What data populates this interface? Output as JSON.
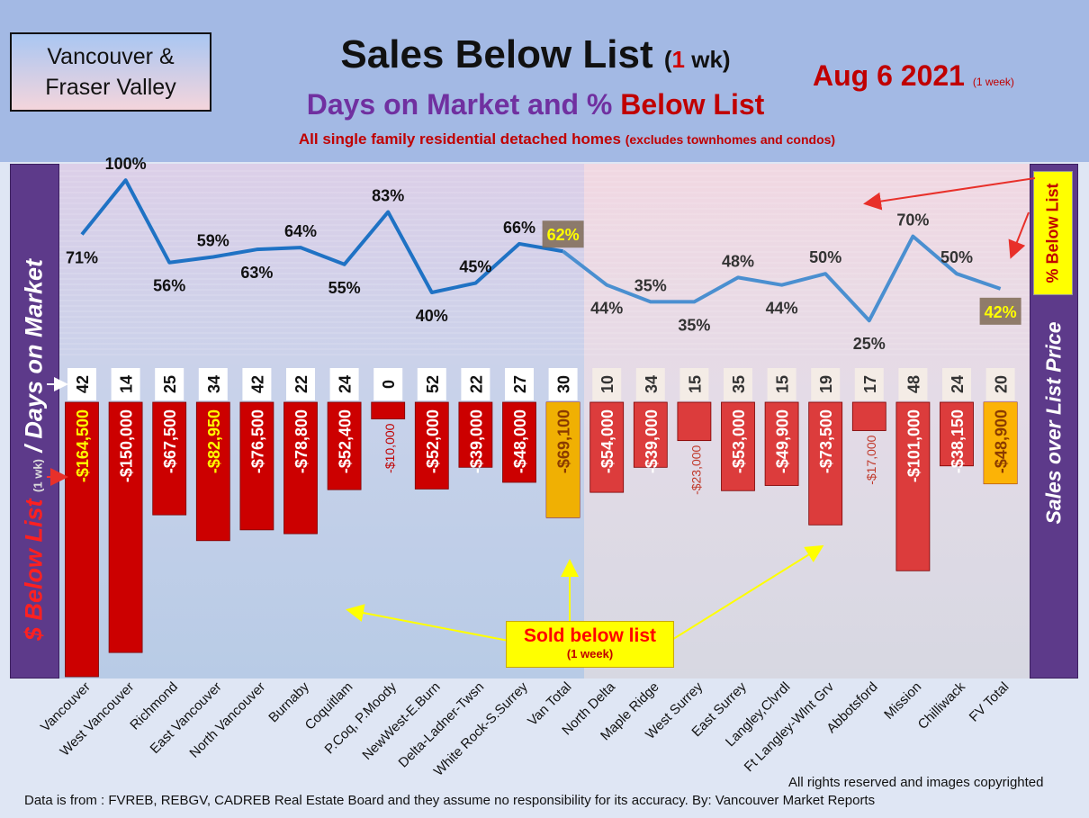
{
  "header": {
    "region_line1": "Vancouver &",
    "region_line2": "Fraser Valley",
    "title_main": "Sales Below List",
    "title_paren_open": "(",
    "title_num": "1",
    "title_unit": " wk)",
    "subtitle_part1": "Days on Market and % ",
    "subtitle_part2": "Below List",
    "note_main": "All single family residential detached homes",
    "note_small": "(excludes townhomes and condos)",
    "date": "Aug 6  2021",
    "date_small": "(1 week)"
  },
  "side": {
    "left_red": "$ Below List",
    "left_small": "(1 wk)",
    "left_rest": "/ Days on Market",
    "right": "Sales over List Price",
    "pct_label": "% Below List"
  },
  "annotation": {
    "sold_main": "Sold below list",
    "sold_sub": "(1 week)"
  },
  "footer": {
    "rights": "All rights reserved and  images copyrighted",
    "source": "Data is from : FVREB, REBGV, CADREB Real Estate Board and they assume no responsibility for its accuracy. By: Vancouver Market Reports"
  },
  "colors": {
    "bar_red": "#cc0000",
    "bar_light": "#dc3c3c",
    "total_bar": "#ffc000",
    "line": "#1f72c4",
    "highlight_label_bg": "#7f6a55",
    "highlight_label_text": "#ffff00"
  },
  "chart_data": {
    "type": "bar+line",
    "categories": [
      "Vancouver",
      "West Vancouver",
      "Richmond",
      "East Vancouver",
      "North Vancouver",
      "Burnaby",
      "Coquitlam",
      "P.Coq, P.Moody",
      "NewWest-E.Burn",
      "Delta-Ladner-Twsn",
      "White Rock-S.Surrey",
      "Van Total",
      "North Delta",
      "Maple Ridge",
      "West Surrey",
      "East Surrey",
      "Langley,Clvrdl",
      "Ft Langley-Wlnt Grv",
      "Abbotsford",
      "Mission",
      "Chilliwack",
      "FV Total"
    ],
    "series": [
      {
        "values": [
          -164500,
          -150000,
          -67500,
          -82950,
          -76500,
          -78800,
          -52400,
          -10000,
          -52000,
          -39000,
          -48000,
          -69100,
          -54000,
          -39000,
          -23000,
          -53000,
          -49900,
          -73500,
          -17000,
          -101000,
          -38150,
          -48900
        ],
        "labels": [
          "-$164,500",
          "-$150,000",
          "-$67,500",
          "-$82,950",
          "-$76,500",
          "-$78,800",
          "-$52,400",
          "-$10,000",
          "-$52,000",
          "-$39,000",
          "-$48,000",
          "-$69,100",
          "-$54,000",
          "-$39,000",
          "-$23,000",
          "-$53,000",
          "-$49,900",
          "-$73,500",
          "-$17,000",
          "-$101,000",
          "-$38,150",
          "-$48,900"
        ]
      },
      {
        "values": [
          42,
          14,
          25,
          34,
          42,
          22,
          24,
          0,
          52,
          22,
          27,
          30,
          10,
          34,
          15,
          35,
          15,
          19,
          17,
          48,
          24,
          20
        ]
      },
      {
        "values": [
          71,
          100,
          56,
          59,
          63,
          64,
          55,
          83,
          40,
          45,
          66,
          62,
          44,
          35,
          35,
          48,
          44,
          50,
          25,
          70,
          50,
          42
        ],
        "labels": [
          "71%",
          "100%",
          "56%",
          "59%",
          "63%",
          "64%",
          "55%",
          "83%",
          "40%",
          "45%",
          "66%",
          "62%",
          "44%",
          "35%",
          "35%",
          "48%",
          "44%",
          "50%",
          "25%",
          "70%",
          "50%",
          "42%"
        ]
      }
    ],
    "ylim_price": [
      -164500,
      0
    ],
    "ylim_pct": [
      0,
      100
    ]
  }
}
